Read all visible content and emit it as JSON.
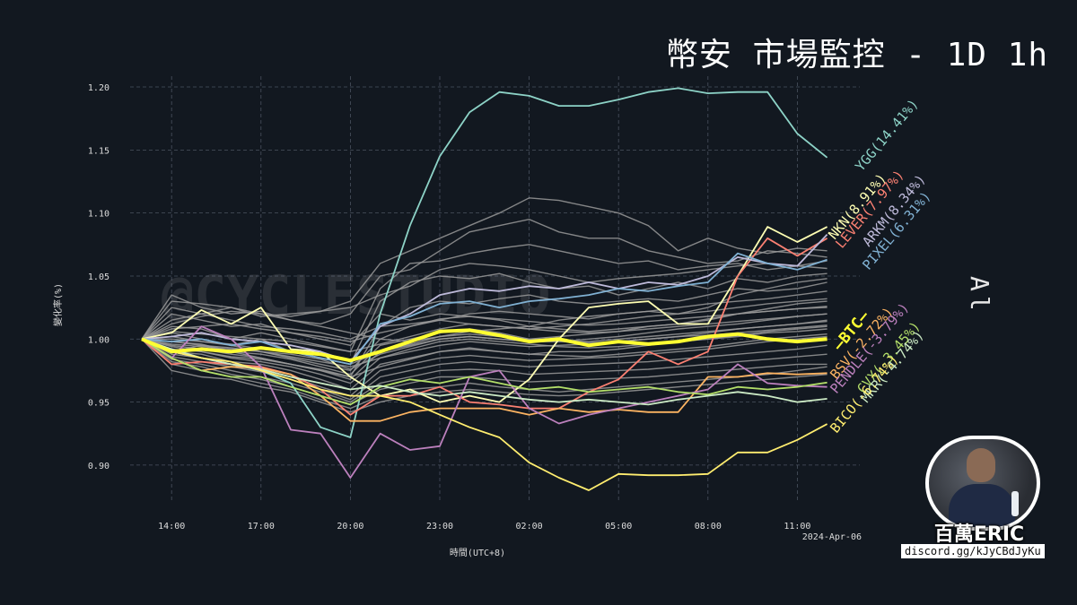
{
  "header": {
    "title": "幣安 市場監控 - 1D 1h",
    "side_label": "All"
  },
  "brand": {
    "name": "百萬ERIC",
    "link": "discord.gg/kJyCBdJyKu"
  },
  "colors": {
    "background": "#121820",
    "grid": "#4a5260",
    "axis_text": "#dddddd",
    "btc": "#ffff33",
    "others": "#9a9a9a"
  },
  "chart_data": {
    "type": "line",
    "title": "幣安 市場監控 - 1D 1h",
    "xlabel": "時間(UTC+8)",
    "ylabel": "變化率(%)",
    "watermark": "@CYCLESTUDIO",
    "x_start": "2024-04-05 13:00",
    "x_step_hours": 1,
    "x_ticks": [
      "14:00",
      "17:00",
      "20:00",
      "23:00",
      "02:00",
      "05:00",
      "08:00",
      "11:00"
    ],
    "x_tick_index": [
      1,
      4,
      7,
      10,
      13,
      16,
      19,
      22
    ],
    "x_date_label": "2024-Apr-06",
    "ylim": [
      0.885,
      1.205
    ],
    "y_ticks": [
      "0.90",
      "0.95",
      "1.00",
      "1.05",
      "1.10",
      "1.15",
      "1.20"
    ],
    "grid": true,
    "series": [
      {
        "name": "YGG",
        "label": "YGG(14.41%)",
        "color": "#8dd3c7",
        "values": [
          1.0,
          0.99,
          0.985,
          0.98,
          0.975,
          0.965,
          0.93,
          0.922,
          1.02,
          1.09,
          1.145,
          1.18,
          1.196,
          1.193,
          1.185,
          1.185,
          1.19,
          1.196,
          1.199,
          1.195,
          1.196,
          1.196,
          1.163,
          1.144
        ]
      },
      {
        "name": "NKN",
        "label": "NKN(8.91%)",
        "color": "#ffffb3",
        "values": [
          1.0,
          1.005,
          1.023,
          1.012,
          1.025,
          0.992,
          0.99,
          0.97,
          0.955,
          0.96,
          0.95,
          0.955,
          0.95,
          0.968,
          1.0,
          1.025,
          1.028,
          1.03,
          1.012,
          1.012,
          1.05,
          1.089,
          1.077,
          1.089
        ]
      },
      {
        "name": "LEVER",
        "label": "LEVER(7.97%)",
        "color": "#fb8072",
        "values": [
          1.0,
          0.98,
          0.982,
          0.98,
          0.978,
          0.972,
          0.96,
          0.94,
          0.955,
          0.955,
          0.962,
          0.95,
          0.948,
          0.945,
          0.945,
          0.958,
          0.968,
          0.99,
          0.98,
          0.99,
          1.05,
          1.08,
          1.066,
          1.08
        ]
      },
      {
        "name": "ARKM",
        "label": "ARKM(8.34%)",
        "color": "#bebada",
        "values": [
          1.0,
          1.002,
          1.005,
          1.0,
          0.998,
          0.995,
          0.99,
          0.982,
          1.01,
          1.02,
          1.035,
          1.04,
          1.038,
          1.042,
          1.04,
          1.045,
          1.04,
          1.045,
          1.043,
          1.05,
          1.065,
          1.06,
          1.058,
          1.083
        ]
      },
      {
        "name": "PIXEL",
        "label": "PIXEL(6.31%)",
        "color": "#80b1d3",
        "values": [
          1.0,
          0.998,
          1.0,
          0.995,
          0.998,
          0.99,
          0.985,
          0.98,
          1.012,
          1.018,
          1.028,
          1.03,
          1.025,
          1.03,
          1.032,
          1.035,
          1.04,
          1.038,
          1.042,
          1.045,
          1.068,
          1.06,
          1.055,
          1.063
        ]
      },
      {
        "name": "BSV",
        "label": "BSV(-2.72%)",
        "color": "#fdb462",
        "values": [
          1.0,
          0.985,
          0.975,
          0.978,
          0.977,
          0.972,
          0.955,
          0.935,
          0.935,
          0.942,
          0.945,
          0.945,
          0.945,
          0.94,
          0.945,
          0.942,
          0.944,
          0.942,
          0.942,
          0.97,
          0.97,
          0.973,
          0.972,
          0.973
        ]
      },
      {
        "name": "PENDLE",
        "label": "PENDLE(-3.79%)",
        "color": "#bc80bd",
        "values": [
          1.0,
          0.985,
          1.01,
          1.0,
          0.978,
          0.928,
          0.925,
          0.89,
          0.925,
          0.912,
          0.915,
          0.97,
          0.975,
          0.945,
          0.933,
          0.94,
          0.945,
          0.95,
          0.955,
          0.96,
          0.98,
          0.965,
          0.963,
          0.962
        ]
      },
      {
        "name": "CVX",
        "label": "CVX(-3.45%)",
        "color": "#b3de69",
        "values": [
          1.0,
          0.985,
          0.975,
          0.97,
          0.97,
          0.962,
          0.955,
          0.948,
          0.962,
          0.968,
          0.965,
          0.97,
          0.965,
          0.96,
          0.962,
          0.958,
          0.96,
          0.962,
          0.958,
          0.956,
          0.962,
          0.96,
          0.962,
          0.9655
        ]
      },
      {
        "name": "MKR",
        "label": "MKR(-4.74%)",
        "color": "#ccebc5",
        "values": [
          1.0,
          0.992,
          0.985,
          0.98,
          0.976,
          0.97,
          0.965,
          0.96,
          0.963,
          0.958,
          0.955,
          0.958,
          0.955,
          0.952,
          0.95,
          0.952,
          0.95,
          0.948,
          0.952,
          0.955,
          0.958,
          0.955,
          0.95,
          0.9526
        ]
      },
      {
        "name": "BICO",
        "label": "BICO(-6.74%)",
        "color": "#ffed6f",
        "values": [
          1.0,
          0.99,
          0.985,
          0.982,
          0.975,
          0.968,
          0.96,
          0.955,
          0.955,
          0.95,
          0.94,
          0.93,
          0.922,
          0.902,
          0.89,
          0.88,
          0.893,
          0.892,
          0.892,
          0.893,
          0.91,
          0.91,
          0.92,
          0.9326
        ]
      },
      {
        "name": "BTC",
        "label": "—BTC—",
        "color": "#ffff33",
        "bold": true,
        "values": [
          1.0,
          0.99,
          0.992,
          0.99,
          0.993,
          0.99,
          0.988,
          0.983,
          0.99,
          0.998,
          1.006,
          1.007,
          1.003,
          0.998,
          1.0,
          0.995,
          0.998,
          0.996,
          0.998,
          1.002,
          1.004,
          1.0,
          0.998,
          1.0
        ]
      }
    ],
    "other_series": [
      [
        1.0,
        1.015,
        1.02,
        1.025,
        1.018,
        1.02,
        1.022,
        1.03,
        1.06,
        1.07,
        1.08,
        1.09,
        1.1,
        1.112,
        1.11,
        1.105,
        1.1,
        1.09,
        1.07,
        1.08,
        1.072,
        1.068,
        1.072,
        1.07
      ],
      [
        1.0,
        1.035,
        1.025,
        1.02,
        1.022,
        1.015,
        1.012,
        1.02,
        1.05,
        1.055,
        1.07,
        1.085,
        1.09,
        1.095,
        1.085,
        1.08,
        1.08,
        1.07,
        1.065,
        1.06,
        1.062,
        1.07,
        1.068,
        1.065
      ],
      [
        1.0,
        1.01,
        1.008,
        1.0,
        1.005,
        1.0,
        0.995,
        0.99,
        1.04,
        1.06,
        1.062,
        1.068,
        1.072,
        1.075,
        1.07,
        1.065,
        1.06,
        1.062,
        1.055,
        1.058,
        1.06,
        1.055,
        1.058,
        1.062
      ],
      [
        1.0,
        1.005,
        1.0,
        0.995,
        1.0,
        0.99,
        0.985,
        0.98,
        1.03,
        1.045,
        1.05,
        1.048,
        1.052,
        1.045,
        1.04,
        1.042,
        1.035,
        1.04,
        1.045,
        1.04,
        1.048,
        1.045,
        1.05,
        1.052
      ],
      [
        1.0,
        0.99,
        0.995,
        0.99,
        0.985,
        0.98,
        0.975,
        0.97,
        1.01,
        1.025,
        1.03,
        1.028,
        1.032,
        1.035,
        1.03,
        1.028,
        1.03,
        1.032,
        1.03,
        1.035,
        1.04,
        1.038,
        1.04,
        1.045
      ],
      [
        1.0,
        1.02,
        1.015,
        1.01,
        1.012,
        1.005,
        1.0,
        0.995,
        1.02,
        1.015,
        1.02,
        1.018,
        1.015,
        1.01,
        1.015,
        1.018,
        1.02,
        1.022,
        1.025,
        1.028,
        1.03,
        1.032,
        1.035,
        1.038
      ],
      [
        1.0,
        1.0,
        0.998,
        0.995,
        0.99,
        0.985,
        0.98,
        0.975,
        1.0,
        1.01,
        1.015,
        1.012,
        1.01,
        1.008,
        1.01,
        1.012,
        1.015,
        1.018,
        1.02,
        1.022,
        1.025,
        1.028,
        1.03,
        1.032
      ],
      [
        1.0,
        0.998,
        0.996,
        0.99,
        0.988,
        0.984,
        0.978,
        0.972,
        0.995,
        1.0,
        1.005,
        1.008,
        1.005,
        1.0,
        1.002,
        1.004,
        1.006,
        1.01,
        1.012,
        1.015,
        1.02,
        1.022,
        1.024,
        1.026
      ],
      [
        1.0,
        0.995,
        0.992,
        0.988,
        0.985,
        0.98,
        0.975,
        0.968,
        0.99,
        0.995,
        1.0,
        1.002,
        1.0,
        0.998,
        0.998,
        1.0,
        1.002,
        1.005,
        1.008,
        1.01,
        1.012,
        1.015,
        1.018,
        1.02
      ],
      [
        1.0,
        0.992,
        0.99,
        0.985,
        0.982,
        0.978,
        0.972,
        0.965,
        0.985,
        0.99,
        0.995,
        0.998,
        0.996,
        0.994,
        0.995,
        0.996,
        0.998,
        1.0,
        1.002,
        1.005,
        1.008,
        1.01,
        1.012,
        1.014
      ],
      [
        1.0,
        0.99,
        0.988,
        0.982,
        0.98,
        0.975,
        0.968,
        0.96,
        0.98,
        0.985,
        0.99,
        0.992,
        0.99,
        0.988,
        0.99,
        0.99,
        0.992,
        0.995,
        0.998,
        1.0,
        1.002,
        1.005,
        1.006,
        1.008
      ],
      [
        1.0,
        0.988,
        0.985,
        0.98,
        0.976,
        0.97,
        0.962,
        0.955,
        0.975,
        0.98,
        0.985,
        0.987,
        0.985,
        0.983,
        0.984,
        0.985,
        0.986,
        0.988,
        0.99,
        0.992,
        0.995,
        0.998,
        1.0,
        1.002
      ],
      [
        1.0,
        0.986,
        0.982,
        0.978,
        0.974,
        0.968,
        0.96,
        0.952,
        0.97,
        0.975,
        0.98,
        0.982,
        0.98,
        0.978,
        0.979,
        0.98,
        0.981,
        0.982,
        0.984,
        0.986,
        0.988,
        0.99,
        0.992,
        0.995
      ],
      [
        1.0,
        0.984,
        0.98,
        0.975,
        0.97,
        0.965,
        0.958,
        0.95,
        0.965,
        0.97,
        0.975,
        0.976,
        0.975,
        0.972,
        0.973,
        0.974,
        0.975,
        0.976,
        0.978,
        0.98,
        0.982,
        0.984,
        0.986,
        0.988
      ],
      [
        1.0,
        0.982,
        0.978,
        0.972,
        0.968,
        0.962,
        0.955,
        0.948,
        0.96,
        0.965,
        0.97,
        0.97,
        0.968,
        0.966,
        0.967,
        0.968,
        0.969,
        0.97,
        0.972,
        0.974,
        0.976,
        0.978,
        0.98,
        0.98
      ],
      [
        1.0,
        1.025,
        1.02,
        1.015,
        1.01,
        1.008,
        1.005,
        1.0,
        1.01,
        1.012,
        1.015,
        1.02,
        1.022,
        1.02,
        1.018,
        1.016,
        1.02,
        1.022,
        1.02,
        1.025,
        1.035,
        1.04,
        1.045,
        1.048
      ],
      [
        1.0,
        1.012,
        1.018,
        1.022,
        1.02,
        1.015,
        1.01,
        1.005,
        1.0,
        0.998,
        1.002,
        1.006,
        1.008,
        1.01,
        1.008,
        1.006,
        1.008,
        1.01,
        1.012,
        1.016,
        1.02,
        1.024,
        1.028,
        1.03
      ],
      [
        1.0,
        0.996,
        0.994,
        0.992,
        0.99,
        0.986,
        0.982,
        0.978,
        0.985,
        0.992,
        0.998,
        1.0,
        0.998,
        0.996,
        0.994,
        0.993,
        0.994,
        0.996,
        0.998,
        1.0,
        1.003,
        1.006,
        1.008,
        1.01
      ],
      [
        1.0,
        0.994,
        0.99,
        0.986,
        0.984,
        0.98,
        0.976,
        0.97,
        0.978,
        0.984,
        0.99,
        0.993,
        0.99,
        0.988,
        0.987,
        0.986,
        0.988,
        0.99,
        0.992,
        0.994,
        0.997,
        1.0,
        1.002,
        1.004
      ],
      [
        1.0,
        0.98,
        0.975,
        0.97,
        0.965,
        0.96,
        0.952,
        0.945,
        0.955,
        0.96,
        0.962,
        0.965,
        0.962,
        0.96,
        0.958,
        0.96,
        0.962,
        0.964,
        0.966,
        0.968,
        0.97,
        0.972,
        0.975,
        0.978
      ],
      [
        1.0,
        1.006,
        1.004,
        1.002,
        1.0,
        0.998,
        0.994,
        0.99,
        0.996,
        1.002,
        1.008,
        1.012,
        1.01,
        1.008,
        1.006,
        1.005,
        1.006,
        1.008,
        1.01,
        1.012,
        1.014,
        1.016,
        1.018,
        1.02
      ],
      [
        1.0,
        1.03,
        1.028,
        1.025,
        1.02,
        1.018,
        1.022,
        1.025,
        1.035,
        1.042,
        1.055,
        1.06,
        1.058,
        1.055,
        1.05,
        1.045,
        1.048,
        1.05,
        1.052,
        1.055,
        1.058,
        1.06,
        1.058,
        1.056
      ],
      [
        1.0,
        0.975,
        0.97,
        0.968,
        0.962,
        0.958,
        0.95,
        0.942,
        0.95,
        0.955,
        0.958,
        0.96,
        0.958,
        0.956,
        0.955,
        0.956,
        0.958,
        0.96,
        0.962,
        0.964,
        0.966,
        0.968,
        0.97,
        0.972
      ],
      [
        1.0,
        1.002,
        0.998,
        0.996,
        0.992,
        0.99,
        0.985,
        0.98,
        0.99,
        0.996,
        1.002,
        1.004,
        1.002,
        1.0,
        0.999,
        0.998,
        1.0,
        1.002,
        1.004,
        1.006,
        1.008,
        1.01,
        1.012,
        1.015
      ],
      [
        1.0,
        0.998,
        0.995,
        0.993,
        0.99,
        0.988,
        0.984,
        0.976,
        0.988,
        0.994,
        1.0,
        1.002,
        1.0,
        0.998,
        0.998,
        0.997,
        0.998,
        1.0,
        1.002,
        1.003,
        1.005,
        1.007,
        1.009,
        1.011
      ],
      [
        1.0,
        1.008,
        1.01,
        1.012,
        1.008,
        1.005,
        1.002,
        0.998,
        1.005,
        1.01,
        1.016,
        1.018,
        1.016,
        1.014,
        1.012,
        1.011,
        1.012,
        1.014,
        1.016,
        1.018,
        1.02,
        1.022,
        1.024,
        1.025
      ]
    ]
  }
}
